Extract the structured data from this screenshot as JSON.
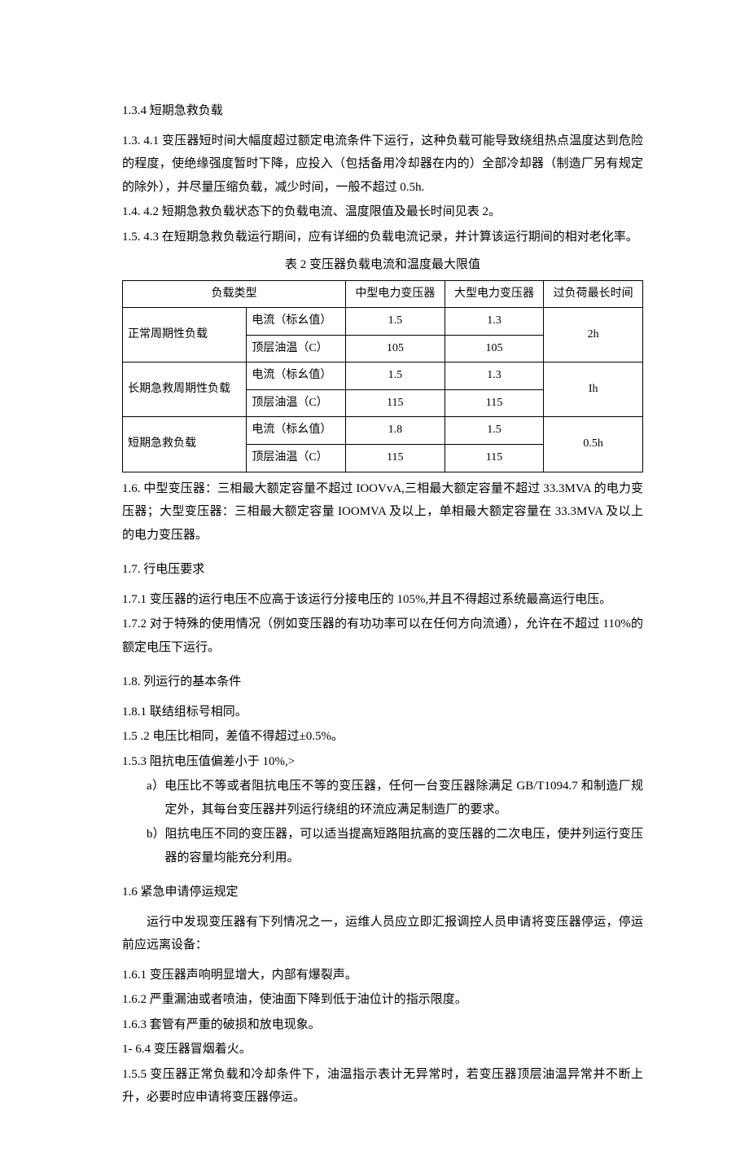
{
  "heading_1_3_4": "1.3.4 短期急救负载",
  "p_1_3_4_1": "1.3. 4.1 变压器短时间大幅度超过额定电流条件下运行，这种负载可能导致绕组热点温度达到危险的程度，使绝缘强度暂时下降，应投入（包括备用冷却器在内的）全部冷却器（制造厂另有规定的除外），并尽量压缩负载，减少时间，一般不超过 0.5h.",
  "p_1_4_4_2": "1.4. 4.2 短期急救负载状态下的负载电流、温度限值及最长时间见表 2。",
  "p_1_5_4_3": "1.5. 4.3 在短期急救负载运行期间，应有详细的负载电流记录，并计算该运行期间的相对老化率。",
  "table_caption": "表 2      变压器负载电流和温度最大限值",
  "table": {
    "headers": [
      "负载类型",
      "中型电力变压器",
      "大型电力变压器",
      "过负荷最长时间"
    ],
    "row_labels": [
      "电流（标幺值）",
      "顶层油温（C）"
    ],
    "groups": [
      {
        "name": "正常周期性负载",
        "current": [
          "1.5",
          "1.3"
        ],
        "temp": [
          "105",
          "105"
        ],
        "time": "2h"
      },
      {
        "name": "长期急救周期性负载",
        "current": [
          "1.5",
          "1.3"
        ],
        "temp": [
          "115",
          "115"
        ],
        "time": "Ih"
      },
      {
        "name": "短期急救负载",
        "current": [
          "1.8",
          "1.5"
        ],
        "temp": [
          "115",
          "115"
        ],
        "time": "0.5h"
      }
    ]
  },
  "p_1_6": "1.6.    中型变压器：三相最大额定容量不超过 IOOVvA,三相最大额定容量不超过 33.3MVA 的电力变压器；大型变压器：三相最大额定容量 IOOMVA 及以上，单相最大额定容量在 33.3MVA 及以上的电力变压器。",
  "heading_1_7": "1.7.    行电压要求",
  "p_1_7_1": "1.7.1  变压器的运行电压不应高于该运行分接电压的 105%,并且不得超过系统最高运行电压。",
  "p_1_7_2": "1.7.2  对于特殊的使用情况（例如变压器的有功功率可以在任何方向流通），允许在不超过 110%的额定电压下运行。",
  "heading_1_8": "1.8.    列运行的基本条件",
  "p_1_8_1": "1.8.1  联结组标号相同。",
  "p_1_5_2": "1.5 .2 电压比相同，差值不得超过±0.5%。",
  "p_1_5_3": "1.5.3 阻抗电压值偏差小于 10%,>",
  "p_1_5_3_a": "a）电压比不等或者阻抗电压不等的变压器，任何一台变压器除满足 GB/T1094.7 和制造厂规定外，其每台变压器并列运行绕组的环流应满足制造厂的要求。",
  "p_1_5_3_b": "b）阻抗电压不同的变压器，可以适当提高短路阻抗高的变压器的二次电压，使并列运行变压器的容量均能充分利用。",
  "heading_1_6b": "1.6  紧急申请停运规定",
  "p_1_6_intro": "运行中发现变压器有下列情况之一，运维人员应立即汇报调控人员申请将变压器停运，停运前应远离设备：",
  "p_1_6_1": "1.6.1  变压器声响明显增大，内部有爆裂声。",
  "p_1_6_2": "1.6.2  严重漏油或者喷油，使油面下降到低于油位计的指示限度。",
  "p_1_6_3": "1.6.3  套管有严重的破损和放电现象。",
  "p_1_6_4": "1- 6.4 变压器冒烟着火。",
  "p_1_5_5": "1.5.5  变压器正常负载和冷却条件下，油温指示表计无异常时，若变压器顶层油温异常并不断上升，必要时应申请将变压器停运。"
}
